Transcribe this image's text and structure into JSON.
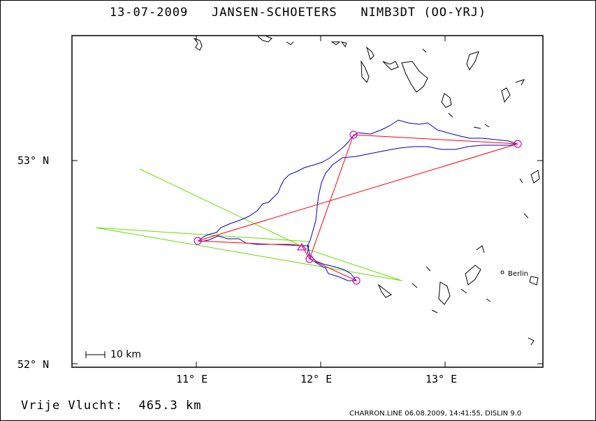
{
  "header": {
    "date": "13-07-2009",
    "pilot": "JANSEN-SCHOETERS",
    "aircraft": "NIMB3DT (OO-YRJ)"
  },
  "axes": {
    "lat_labels": [
      "53° N",
      "52° N"
    ],
    "lon_labels": [
      "11° E",
      "12° E",
      "13° E"
    ]
  },
  "scale": {
    "label": "10 km"
  },
  "city": {
    "name": "Berlin"
  },
  "distance": {
    "label": "Vrije Vlucht:",
    "value": "465.3 km"
  },
  "footer": {
    "text": "CHARRON.LINE 06.08.2009, 14:41:55, DISLIN 9.0"
  },
  "colors": {
    "frame": "#000000",
    "track": "#0000cc",
    "task": "#ff0000",
    "sector": "#66dd00",
    "turnpoint": "#dd00dd"
  }
}
